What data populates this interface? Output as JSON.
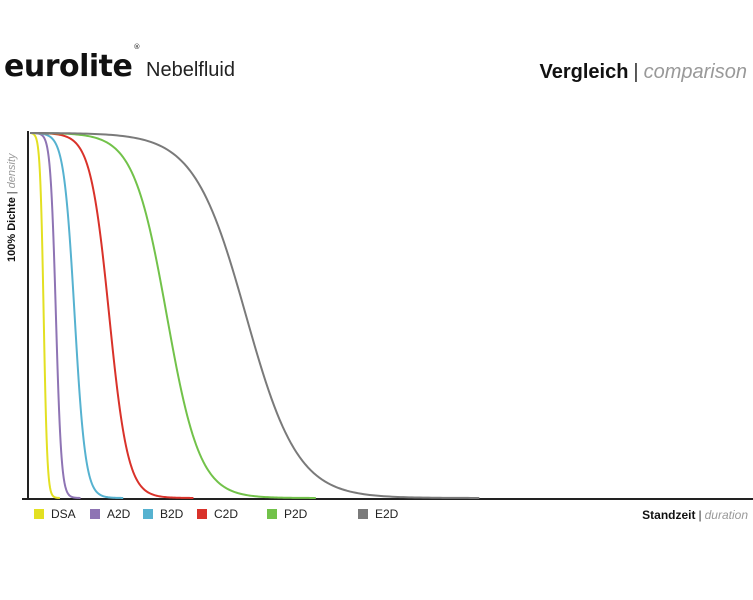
{
  "header": {
    "brand": "eurolite",
    "registered": "®",
    "product": "Nebelfluid",
    "title_de": "Vergleich",
    "title_sep": "|",
    "title_en": "comparison"
  },
  "chart_data": {
    "type": "line",
    "title": "Vergleich | comparison",
    "ylabel_de": "100% Dichte",
    "ylabel_en": "density",
    "xlabel_de": "Standzeit",
    "xlabel_en": "duration",
    "label_sep": "|",
    "x_ticks": "none",
    "y_ticks": "none",
    "xlim": [
      0,
      100
    ],
    "ylim": [
      0,
      100
    ],
    "grid": false,
    "legend": "bottom-left",
    "x": [
      0,
      1,
      2,
      3,
      4,
      5,
      6,
      7,
      8,
      9,
      10,
      11,
      12,
      13,
      14,
      15,
      16,
      17,
      18,
      19,
      20,
      22,
      24,
      26,
      28,
      30,
      32,
      34,
      36,
      38,
      40,
      42,
      44,
      46,
      48,
      50,
      52,
      54,
      56,
      58,
      60
    ],
    "series": [
      {
        "name": "DSA",
        "color": "#e3e022",
        "t50": 1.9,
        "w": 0.25
      },
      {
        "name": "A2D",
        "color": "#8e74b4",
        "t50": 3.6,
        "w": 0.38
      },
      {
        "name": "B2D",
        "color": "#56b2d0",
        "t50": 6.2,
        "w": 0.75
      },
      {
        "name": "C2D",
        "color": "#d9322a",
        "t50": 11.0,
        "w": 1.3
      },
      {
        "name": "P2D",
        "color": "#72c24a",
        "t50": 19.0,
        "w": 2.3
      },
      {
        "name": "E2D",
        "color": "#7a7a7a",
        "t50": 30.0,
        "w": 3.6
      }
    ]
  },
  "legend_positions_note": ""
}
